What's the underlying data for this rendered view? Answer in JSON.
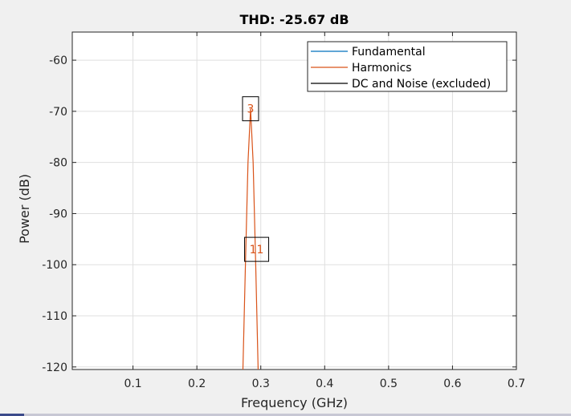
{
  "chart_data": {
    "type": "line",
    "title": "THD: -25.67 dB",
    "xlabel": "Frequency (GHz)",
    "ylabel": "Power (dB)",
    "xlim": [
      0.005,
      0.7
    ],
    "ylim": [
      -120.5,
      -54.5
    ],
    "xticks": [
      0.1,
      0.2,
      0.3,
      0.4,
      0.5,
      0.6,
      0.7
    ],
    "xtick_labels": [
      "0.1",
      "0.2",
      "0.3",
      "0.4",
      "0.5",
      "0.6",
      "0.7"
    ],
    "yticks": [
      -60,
      -70,
      -80,
      -90,
      -100,
      -110,
      -120
    ],
    "ytick_labels": [
      "-60",
      "-70",
      "-80",
      "-90",
      "-100",
      "-110",
      "-120"
    ],
    "grid": true,
    "legend_position": "top-right",
    "series": [
      {
        "name": "Fundamental",
        "color": "#0072BD",
        "x": [],
        "y": []
      },
      {
        "name": "Harmonics",
        "color": "#D95319",
        "x": [
          0.272,
          0.276,
          0.28,
          0.284,
          0.288,
          0.292,
          0.296
        ],
        "y": [
          -121,
          -100,
          -80,
          -69.5,
          -80,
          -100,
          -121
        ]
      },
      {
        "name": "DC and Noise (excluded)",
        "color": "#000000",
        "x": [],
        "y": []
      }
    ],
    "annotations": [
      {
        "label": "3",
        "x": 0.284,
        "y": -69.5
      },
      {
        "label": "11",
        "x": 0.2935,
        "y": -97
      }
    ]
  }
}
